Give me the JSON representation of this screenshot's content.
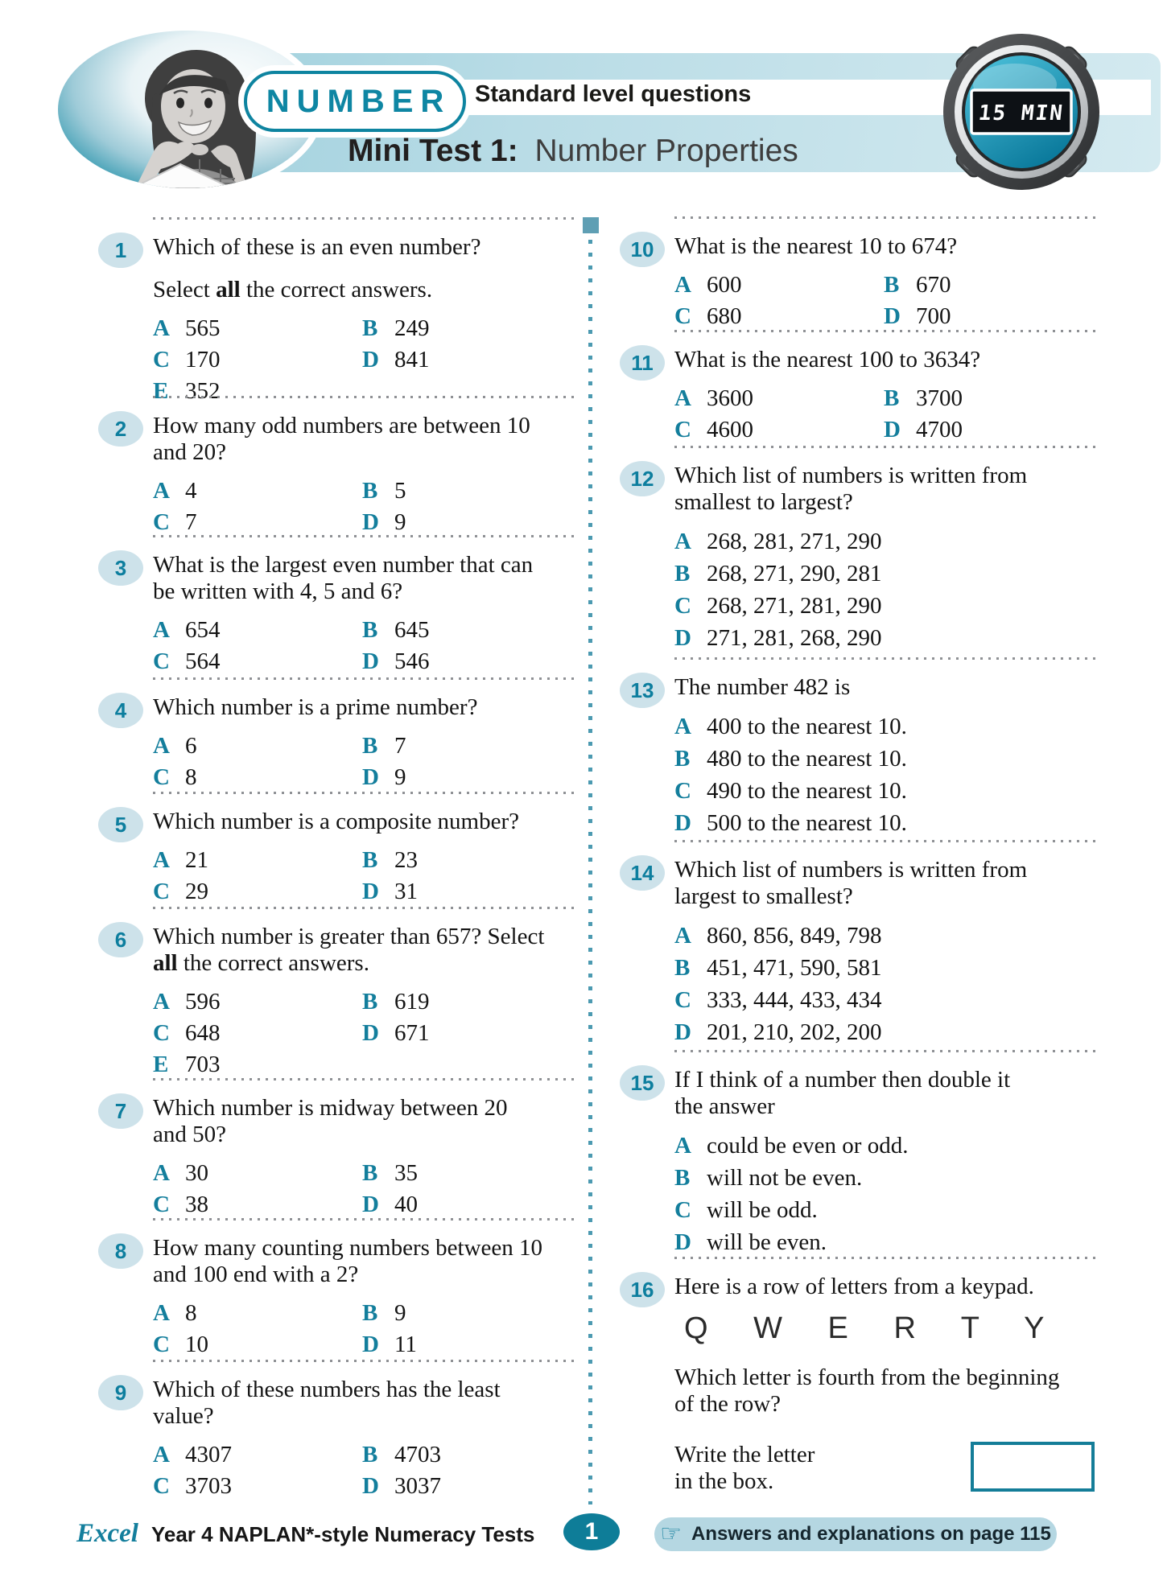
{
  "header": {
    "category": "NUMBER",
    "level_label": "Standard level questions",
    "test_label": "Mini Test 1:",
    "test_topic": "Number Properties",
    "timer_text": "15 MIN"
  },
  "questions": {
    "left": [
      {
        "num": "1",
        "lines": [
          "Which of these is an even number?",
          "",
          "Select **all** the correct answers."
        ],
        "layout": "grid",
        "options": [
          {
            "letter": "A",
            "text": "565"
          },
          {
            "letter": "B",
            "text": "249"
          },
          {
            "letter": "C",
            "text": "170"
          },
          {
            "letter": "D",
            "text": "841"
          },
          {
            "letter": "E",
            "text": "352"
          }
        ]
      },
      {
        "num": "2",
        "lines": [
          "How many odd numbers are between 10",
          "and 20?"
        ],
        "layout": "grid",
        "options": [
          {
            "letter": "A",
            "text": "4"
          },
          {
            "letter": "B",
            "text": "5"
          },
          {
            "letter": "C",
            "text": "7"
          },
          {
            "letter": "D",
            "text": "9"
          }
        ]
      },
      {
        "num": "3",
        "lines": [
          "What is the largest even number that can",
          "be written with 4, 5 and 6?"
        ],
        "layout": "grid",
        "options": [
          {
            "letter": "A",
            "text": "654"
          },
          {
            "letter": "B",
            "text": "645"
          },
          {
            "letter": "C",
            "text": "564"
          },
          {
            "letter": "D",
            "text": "546"
          }
        ]
      },
      {
        "num": "4",
        "lines": [
          "Which number is a prime number?"
        ],
        "layout": "grid",
        "options": [
          {
            "letter": "A",
            "text": "6"
          },
          {
            "letter": "B",
            "text": "7"
          },
          {
            "letter": "C",
            "text": "8"
          },
          {
            "letter": "D",
            "text": "9"
          }
        ]
      },
      {
        "num": "5",
        "lines": [
          "Which number is a composite number?"
        ],
        "layout": "grid",
        "options": [
          {
            "letter": "A",
            "text": "21"
          },
          {
            "letter": "B",
            "text": "23"
          },
          {
            "letter": "C",
            "text": "29"
          },
          {
            "letter": "D",
            "text": "31"
          }
        ]
      },
      {
        "num": "6",
        "lines": [
          "Which number is greater than 657? Select",
          "**all** the correct answers."
        ],
        "layout": "grid",
        "options": [
          {
            "letter": "A",
            "text": "596"
          },
          {
            "letter": "B",
            "text": "619"
          },
          {
            "letter": "C",
            "text": "648"
          },
          {
            "letter": "D",
            "text": "671"
          },
          {
            "letter": "E",
            "text": "703"
          }
        ]
      },
      {
        "num": "7",
        "lines": [
          "Which number is midway between 20",
          "and 50?"
        ],
        "layout": "grid",
        "options": [
          {
            "letter": "A",
            "text": "30"
          },
          {
            "letter": "B",
            "text": "35"
          },
          {
            "letter": "C",
            "text": "38"
          },
          {
            "letter": "D",
            "text": "40"
          }
        ]
      },
      {
        "num": "8",
        "lines": [
          "How many counting numbers between 10",
          "and 100 end with a 2?"
        ],
        "layout": "grid",
        "options": [
          {
            "letter": "A",
            "text": "8"
          },
          {
            "letter": "B",
            "text": "9"
          },
          {
            "letter": "C",
            "text": "10"
          },
          {
            "letter": "D",
            "text": "11"
          }
        ]
      },
      {
        "num": "9",
        "lines": [
          "Which of these numbers has the least",
          "value?"
        ],
        "layout": "grid",
        "options": [
          {
            "letter": "A",
            "text": "4307"
          },
          {
            "letter": "B",
            "text": "4703"
          },
          {
            "letter": "C",
            "text": "3703"
          },
          {
            "letter": "D",
            "text": "3037"
          }
        ]
      }
    ],
    "right": [
      {
        "num": "10",
        "lines": [
          "What is the nearest 10 to 674?"
        ],
        "layout": "grid",
        "options": [
          {
            "letter": "A",
            "text": "600"
          },
          {
            "letter": "B",
            "text": "670"
          },
          {
            "letter": "C",
            "text": "680"
          },
          {
            "letter": "D",
            "text": "700"
          }
        ]
      },
      {
        "num": "11",
        "lines": [
          "What is the nearest 100 to 3634?"
        ],
        "layout": "grid",
        "options": [
          {
            "letter": "A",
            "text": "3600"
          },
          {
            "letter": "B",
            "text": "3700"
          },
          {
            "letter": "C",
            "text": "4600"
          },
          {
            "letter": "D",
            "text": "4700"
          }
        ]
      },
      {
        "num": "12",
        "lines": [
          "Which list of numbers is written from",
          "smallest to largest?"
        ],
        "layout": "list",
        "options": [
          {
            "letter": "A",
            "text": "268, 281, 271, 290"
          },
          {
            "letter": "B",
            "text": "268, 271, 290, 281"
          },
          {
            "letter": "C",
            "text": "268, 271, 281, 290"
          },
          {
            "letter": "D",
            "text": "271, 281, 268, 290"
          }
        ]
      },
      {
        "num": "13",
        "lines": [
          "The number 482 is"
        ],
        "layout": "list",
        "options": [
          {
            "letter": "A",
            "text": "400 to the nearest 10."
          },
          {
            "letter": "B",
            "text": "480 to the nearest 10."
          },
          {
            "letter": "C",
            "text": "490 to the nearest 10."
          },
          {
            "letter": "D",
            "text": "500 to the nearest 10."
          }
        ]
      },
      {
        "num": "14",
        "lines": [
          "Which list of numbers is written from",
          "largest to smallest?"
        ],
        "layout": "list",
        "options": [
          {
            "letter": "A",
            "text": "860, 856, 849, 798"
          },
          {
            "letter": "B",
            "text": "451, 471, 590, 581"
          },
          {
            "letter": "C",
            "text": "333, 444, 433, 434"
          },
          {
            "letter": "D",
            "text": "201, 210, 202, 200"
          }
        ]
      },
      {
        "num": "15",
        "lines": [
          "If I think of a number then double it",
          "the answer"
        ],
        "layout": "list",
        "options": [
          {
            "letter": "A",
            "text": "could be even or odd."
          },
          {
            "letter": "B",
            "text": "will not be even."
          },
          {
            "letter": "C",
            "text": "will be odd."
          },
          {
            "letter": "D",
            "text": "will be even."
          }
        ]
      },
      {
        "num": "16",
        "lines": [
          "Here is a row of letters from a keypad."
        ],
        "keypad": "Q W E R T Y",
        "post_lines": [
          "Which letter is fourth from the beginning",
          "of the row?"
        ],
        "write_lines": [
          "Write the letter",
          "in the box."
        ],
        "answer_box": true
      }
    ]
  },
  "footer": {
    "brand": "Excel",
    "series": "Year 4 NAPLAN*-style Numeracy Tests",
    "page_number": "1",
    "hand_icon": "☞",
    "answers_note": "Answers and explanations on page 115"
  },
  "colors": {
    "teal": "#137e9c",
    "badge_bg": "#cde2ea",
    "banner_blue": "#b9dce6",
    "pill_bg": "#b5d7e2"
  }
}
